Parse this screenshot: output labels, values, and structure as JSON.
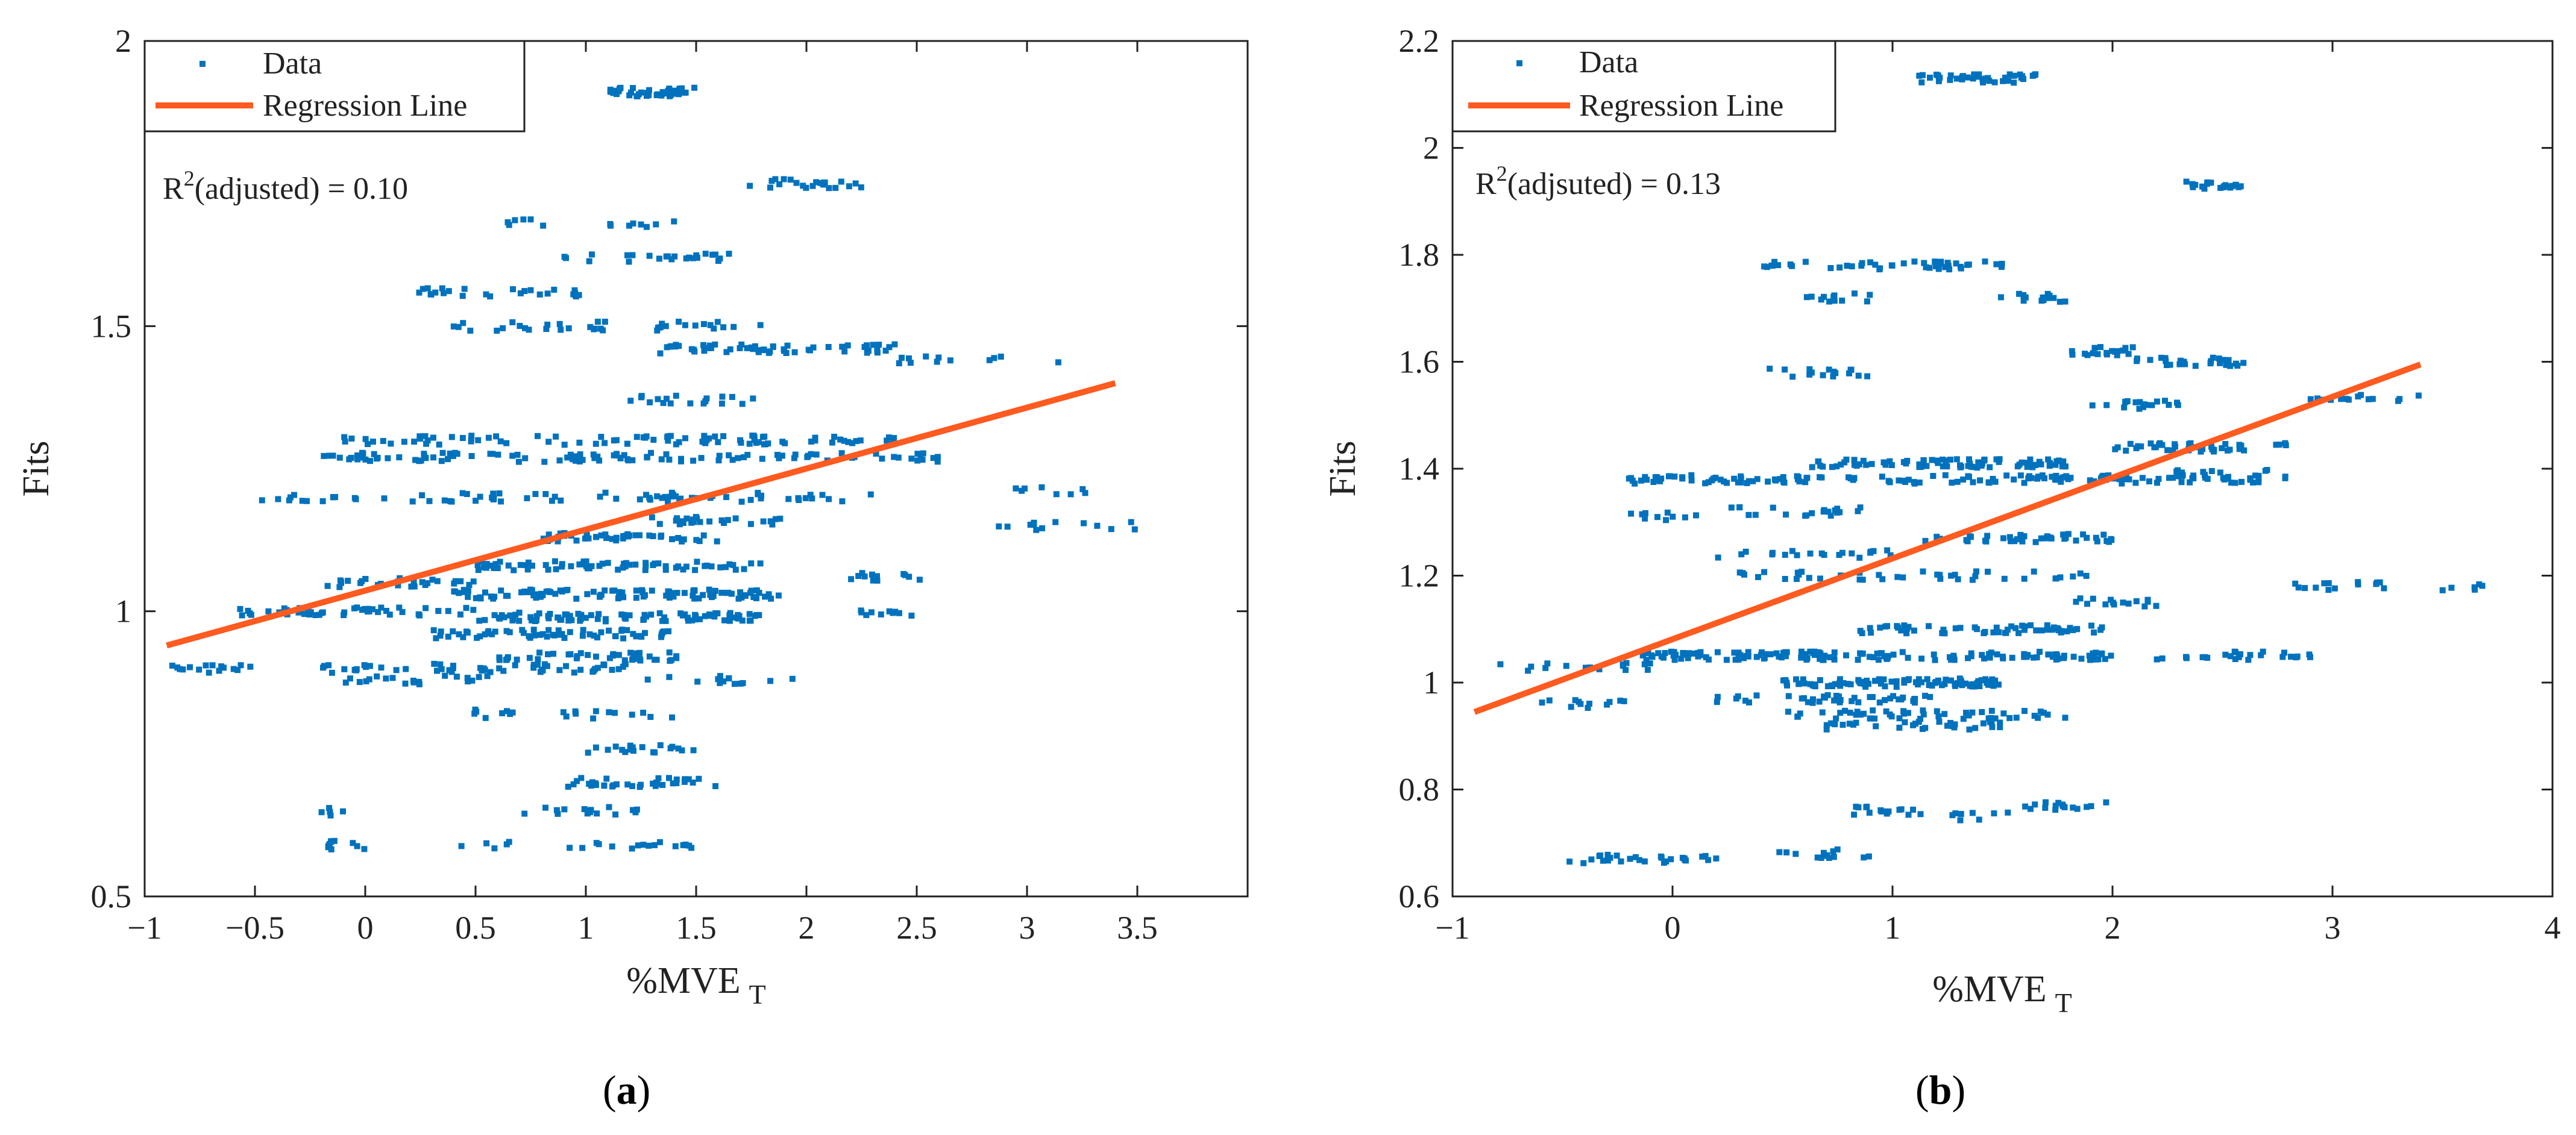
{
  "colors": {
    "data": "#0072BD",
    "regression": "#FF5A1F",
    "axis": "#222222",
    "background": "#ffffff"
  },
  "legend_labels": {
    "data": "Data",
    "regression": "Regression Line"
  },
  "captions": [
    {
      "open": "(",
      "letter": "a",
      "close": ")"
    },
    {
      "open": "(",
      "letter": "b",
      "close": ")"
    }
  ],
  "chart_data": [
    {
      "id": "a",
      "type": "scatter",
      "xlabel_main": "%MVE",
      "xlabel_sub": "T",
      "ylabel": "Fits",
      "xlim": [
        -1,
        4
      ],
      "ylim": [
        0.5,
        2
      ],
      "xticks": [
        -1,
        -0.5,
        0,
        0.5,
        1,
        1.5,
        2,
        2.5,
        3,
        3.5
      ],
      "xtick_labels": [
        "−1",
        "−0.5",
        "0",
        "0.5",
        "1",
        "1.5",
        "2",
        "2.5",
        "3",
        "3.5"
      ],
      "yticks": [
        0.5,
        1,
        1.5,
        2
      ],
      "ytick_labels": [
        "0.5",
        "1",
        "1.5",
        "2"
      ],
      "annotation": {
        "r": "R",
        "sup": "2",
        "rest": "(adjusted) = 0.10"
      },
      "regression": {
        "x1": -0.9,
        "y1": 0.94,
        "x2": 3.4,
        "y2": 1.4
      },
      "clusters": [
        [
          1.1,
          1.5,
          1.91,
          40
        ],
        [
          1.7,
          2.25,
          1.75,
          22
        ],
        [
          0.6,
          1.4,
          1.68,
          14
        ],
        [
          0.9,
          1.65,
          1.62,
          24
        ],
        [
          0.2,
          1.0,
          1.56,
          26
        ],
        [
          0.4,
          1.1,
          1.5,
          22
        ],
        [
          1.3,
          1.8,
          1.5,
          16
        ],
        [
          1.3,
          2.4,
          1.46,
          55
        ],
        [
          2.4,
          3.3,
          1.44,
          12
        ],
        [
          1.2,
          1.8,
          1.37,
          18
        ],
        [
          -0.1,
          2.4,
          1.3,
          90
        ],
        [
          -0.2,
          2.6,
          1.27,
          110
        ],
        [
          -0.5,
          0.1,
          1.2,
          14
        ],
        [
          0.2,
          1.8,
          1.2,
          50
        ],
        [
          1.9,
          2.3,
          1.2,
          10
        ],
        [
          2.9,
          3.3,
          1.21,
          8
        ],
        [
          1.3,
          1.9,
          1.16,
          25
        ],
        [
          0.8,
          1.6,
          1.13,
          45
        ],
        [
          2.8,
          3.5,
          1.15,
          14
        ],
        [
          0.5,
          1.8,
          1.08,
          70
        ],
        [
          -0.2,
          0.5,
          1.05,
          28
        ],
        [
          2.2,
          2.6,
          1.06,
          12
        ],
        [
          0.4,
          1.9,
          1.03,
          100
        ],
        [
          -0.6,
          0.5,
          1.0,
          45
        ],
        [
          0.3,
          1.4,
          0.96,
          60
        ],
        [
          0.5,
          1.8,
          0.99,
          90
        ],
        [
          2.2,
          2.5,
          1.0,
          10
        ],
        [
          0.6,
          1.5,
          0.92,
          40
        ],
        [
          -0.9,
          -0.5,
          0.9,
          16
        ],
        [
          -0.2,
          0.2,
          0.9,
          14
        ],
        [
          0.3,
          1.2,
          0.9,
          40
        ],
        [
          1.2,
          2.0,
          0.88,
          14
        ],
        [
          -0.1,
          0.6,
          0.88,
          20
        ],
        [
          0.4,
          1.4,
          0.82,
          20
        ],
        [
          1.0,
          1.5,
          0.76,
          20
        ],
        [
          0.9,
          1.6,
          0.7,
          35
        ],
        [
          0.7,
          1.3,
          0.65,
          16
        ],
        [
          -0.2,
          -0.1,
          0.65,
          5
        ],
        [
          -0.2,
          0.0,
          0.59,
          10
        ],
        [
          0.4,
          1.7,
          0.59,
          22
        ]
      ]
    },
    {
      "id": "b",
      "type": "scatter",
      "xlabel_main": "%MVE",
      "xlabel_sub": "T",
      "ylabel": "Fits",
      "xlim": [
        -1,
        4
      ],
      "ylim": [
        0.6,
        2.2
      ],
      "xticks": [
        -1,
        0,
        1,
        2,
        3,
        4
      ],
      "xtick_labels": [
        "−1",
        "0",
        "1",
        "2",
        "3",
        "4"
      ],
      "yticks": [
        0.6,
        0.8,
        1,
        1.2,
        1.4,
        1.6,
        1.8,
        2,
        2.2
      ],
      "ytick_labels": [
        "0.6",
        "0.8",
        "1",
        "1.2",
        "1.4",
        "1.6",
        "1.8",
        "2",
        "2.2"
      ],
      "annotation": {
        "r": "R",
        "sup": "2",
        "rest": "(adjsuted) = 0.13"
      },
      "regression": {
        "x1": -0.9,
        "y1": 0.945,
        "x2": 3.4,
        "y2": 1.595
      },
      "clusters": [
        [
          1.1,
          1.7,
          2.13,
          40
        ],
        [
          2.3,
          2.6,
          1.93,
          20
        ],
        [
          0.4,
          0.9,
          1.78,
          16
        ],
        [
          0.9,
          1.5,
          1.78,
          30
        ],
        [
          0.6,
          0.9,
          1.72,
          12
        ],
        [
          1.4,
          1.8,
          1.72,
          14
        ],
        [
          1.8,
          2.1,
          1.62,
          18
        ],
        [
          0.4,
          0.9,
          1.58,
          16
        ],
        [
          2.1,
          2.6,
          1.6,
          25
        ],
        [
          1.9,
          2.3,
          1.52,
          18
        ],
        [
          2.9,
          3.4,
          1.53,
          14
        ],
        [
          2.0,
          2.8,
          1.44,
          40
        ],
        [
          -0.2,
          2.7,
          1.38,
          140
        ],
        [
          0.6,
          1.8,
          1.41,
          80
        ],
        [
          2.2,
          2.8,
          1.39,
          22
        ],
        [
          0.2,
          0.9,
          1.32,
          20
        ],
        [
          -0.2,
          0.2,
          1.31,
          10
        ],
        [
          1.1,
          2.0,
          1.27,
          40
        ],
        [
          0.2,
          1.0,
          1.24,
          20
        ],
        [
          0.3,
          1.9,
          1.2,
          40
        ],
        [
          1.8,
          2.2,
          1.15,
          15
        ],
        [
          2.8,
          3.3,
          1.18,
          14
        ],
        [
          3.5,
          3.7,
          1.18,
          6
        ],
        [
          0.8,
          2.0,
          1.1,
          60
        ],
        [
          -0.2,
          2.0,
          1.05,
          150
        ],
        [
          0.5,
          1.5,
          1.0,
          90
        ],
        [
          2.2,
          2.9,
          1.05,
          25
        ],
        [
          -0.8,
          -0.1,
          1.03,
          16
        ],
        [
          -0.6,
          -0.1,
          0.96,
          12
        ],
        [
          0.5,
          1.8,
          0.94,
          50
        ],
        [
          0.2,
          1.2,
          0.97,
          40
        ],
        [
          0.7,
          1.5,
          0.92,
          30
        ],
        [
          0.8,
          1.3,
          0.76,
          18
        ],
        [
          1.6,
          2.0,
          0.77,
          16
        ],
        [
          1.3,
          1.6,
          0.75,
          6
        ],
        [
          -0.5,
          0.2,
          0.67,
          28
        ],
        [
          0.4,
          0.9,
          0.68,
          14
        ]
      ]
    }
  ]
}
